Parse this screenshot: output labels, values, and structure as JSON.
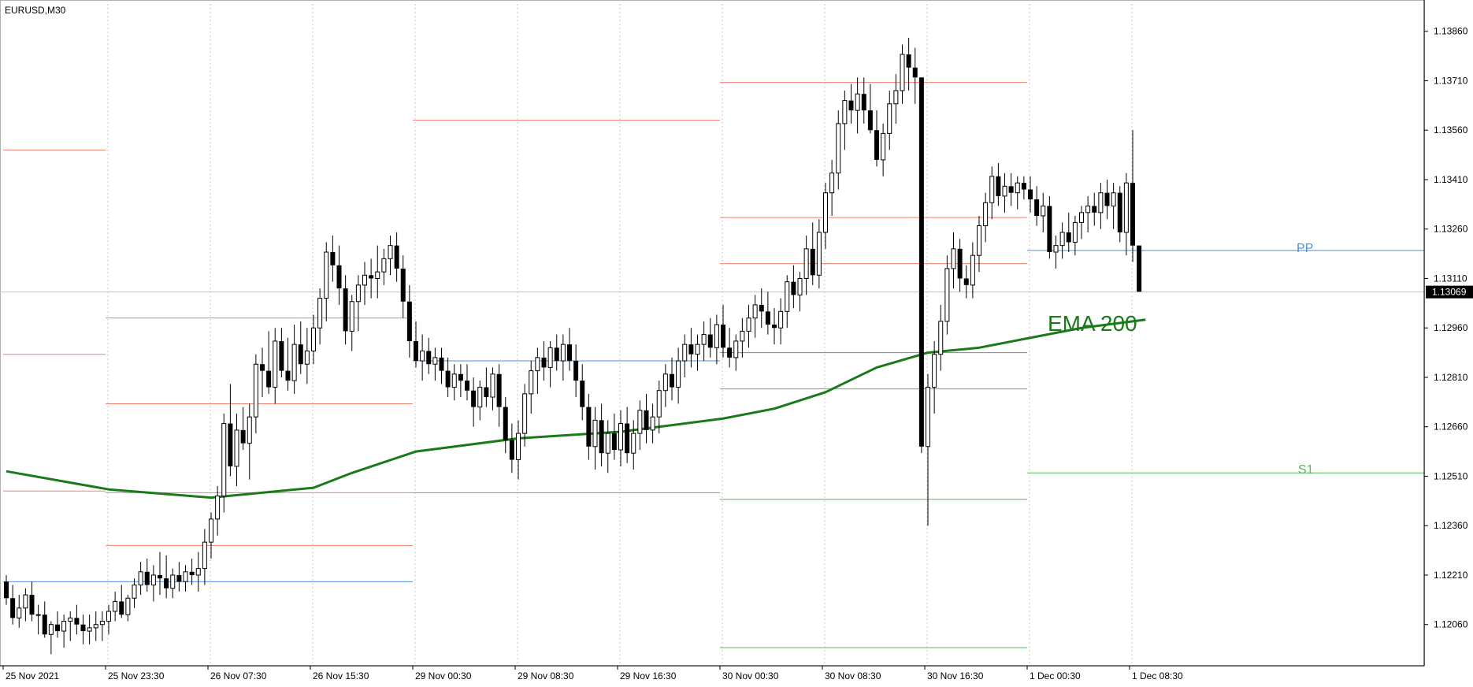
{
  "chart_data": {
    "type": "candlestick",
    "title": "EURUSD,M30",
    "symbol": "EURUSD",
    "timeframe": "M30",
    "current_price": "1.13069",
    "y_ticks": [
      "1.13860",
      "1.13710",
      "1.13560",
      "1.13410",
      "1.13260",
      "1.13110",
      "1.12960",
      "1.12810",
      "1.12660",
      "1.12510",
      "1.12360",
      "1.12210",
      "1.12060"
    ],
    "ylim": [
      1.11935,
      1.13955
    ],
    "x_ticks": [
      "25 Nov 2021",
      "25 Nov 23:30",
      "26 Nov 07:30",
      "26 Nov 15:30",
      "29 Nov 00:30",
      "29 Nov 08:30",
      "29 Nov 16:30",
      "30 Nov 00:30",
      "30 Nov 08:30",
      "30 Nov 16:30",
      "1 Dec 00:30",
      "1 Dec 08:30"
    ],
    "x_tick_bars": [
      0,
      16,
      32,
      48,
      64,
      80,
      96,
      112,
      128,
      144,
      160,
      176
    ],
    "grid": "vertical dotted separators",
    "annotations": {
      "ema": "EMA 200",
      "pp": "PP",
      "s1": "S1"
    },
    "colors": {
      "ema": "#1a7a1a",
      "resistance": "#f08070",
      "support": "#55bb55",
      "pivot": "#4f8fd6",
      "candle": "#000000",
      "price_line": "#c0c0c0"
    },
    "candles_ohlc": [
      [
        1.1219,
        1.1221,
        1.1212,
        1.1214
      ],
      [
        1.1214,
        1.1218,
        1.1206,
        1.1208
      ],
      [
        1.1208,
        1.1215,
        1.1205,
        1.1211
      ],
      [
        1.1211,
        1.1217,
        1.1207,
        1.1215
      ],
      [
        1.1215,
        1.1219,
        1.1207,
        1.1209
      ],
      [
        1.1209,
        1.1212,
        1.1203,
        1.1209
      ],
      [
        1.1209,
        1.1213,
        1.1202,
        1.1203
      ],
      [
        1.1203,
        1.1207,
        1.1197,
        1.1206
      ],
      [
        1.1206,
        1.121,
        1.1202,
        1.1204
      ],
      [
        1.1204,
        1.1209,
        1.1199,
        1.1207
      ],
      [
        1.1207,
        1.121,
        1.1201,
        1.1208
      ],
      [
        1.1208,
        1.1212,
        1.1203,
        1.1206
      ],
      [
        1.1206,
        1.1209,
        1.12,
        1.1204
      ],
      [
        1.1204,
        1.1209,
        1.12,
        1.1205
      ],
      [
        1.1205,
        1.121,
        1.1201,
        1.1206
      ],
      [
        1.1206,
        1.121,
        1.1201,
        1.1207
      ],
      [
        1.1207,
        1.1212,
        1.1203,
        1.121
      ],
      [
        1.121,
        1.1216,
        1.1207,
        1.1213
      ],
      [
        1.1213,
        1.1218,
        1.1208,
        1.1209
      ],
      [
        1.1209,
        1.1215,
        1.1207,
        1.1214
      ],
      [
        1.1214,
        1.122,
        1.1211,
        1.1218
      ],
      [
        1.1218,
        1.1225,
        1.1215,
        1.1222
      ],
      [
        1.1222,
        1.1226,
        1.1216,
        1.1218
      ],
      [
        1.1218,
        1.1224,
        1.1213,
        1.1221
      ],
      [
        1.1221,
        1.1228,
        1.1215,
        1.122
      ],
      [
        1.122,
        1.1227,
        1.1214,
        1.1217
      ],
      [
        1.1217,
        1.1223,
        1.1214,
        1.1221
      ],
      [
        1.1221,
        1.1225,
        1.1216,
        1.1219
      ],
      [
        1.1219,
        1.1224,
        1.1216,
        1.1222
      ],
      [
        1.1222,
        1.1226,
        1.1218,
        1.1221
      ],
      [
        1.1221,
        1.1228,
        1.1216,
        1.1223
      ],
      [
        1.1223,
        1.1235,
        1.1218,
        1.1231
      ],
      [
        1.1231,
        1.124,
        1.1226,
        1.1238
      ],
      [
        1.1238,
        1.1248,
        1.1233,
        1.1245
      ],
      [
        1.1245,
        1.127,
        1.124,
        1.1267
      ],
      [
        1.1267,
        1.1279,
        1.1251,
        1.1254
      ],
      [
        1.1254,
        1.127,
        1.1248,
        1.1265
      ],
      [
        1.1265,
        1.1272,
        1.1259,
        1.1261
      ],
      [
        1.1261,
        1.1273,
        1.125,
        1.1269
      ],
      [
        1.1269,
        1.1288,
        1.1264,
        1.1285
      ],
      [
        1.1285,
        1.129,
        1.1275,
        1.1283
      ],
      [
        1.1283,
        1.1295,
        1.1276,
        1.1278
      ],
      [
        1.1278,
        1.1296,
        1.1273,
        1.1292
      ],
      [
        1.1292,
        1.1296,
        1.1281,
        1.1283
      ],
      [
        1.1283,
        1.1293,
        1.1277,
        1.128
      ],
      [
        1.128,
        1.1297,
        1.1276,
        1.1291
      ],
      [
        1.1291,
        1.1298,
        1.1282,
        1.1285
      ],
      [
        1.1285,
        1.1296,
        1.1279,
        1.1289
      ],
      [
        1.1289,
        1.13,
        1.1285,
        1.1296
      ],
      [
        1.1296,
        1.1308,
        1.1291,
        1.1305
      ],
      [
        1.1305,
        1.1322,
        1.1298,
        1.1319
      ],
      [
        1.1319,
        1.1324,
        1.131,
        1.1315
      ],
      [
        1.1315,
        1.1321,
        1.1303,
        1.1308
      ],
      [
        1.1308,
        1.1312,
        1.1291,
        1.1295
      ],
      [
        1.1295,
        1.1306,
        1.1289,
        1.1304
      ],
      [
        1.1304,
        1.1312,
        1.1295,
        1.1309
      ],
      [
        1.1309,
        1.1316,
        1.1303,
        1.1312
      ],
      [
        1.1312,
        1.1317,
        1.1305,
        1.1311
      ],
      [
        1.1311,
        1.1321,
        1.1305,
        1.1313
      ],
      [
        1.1313,
        1.132,
        1.1309,
        1.1317
      ],
      [
        1.1317,
        1.1324,
        1.1312,
        1.1321
      ],
      [
        1.1321,
        1.1325,
        1.131,
        1.1314
      ],
      [
        1.1314,
        1.1318,
        1.1299,
        1.1304
      ],
      [
        1.1304,
        1.1309,
        1.1287,
        1.1292
      ],
      [
        1.1292,
        1.1298,
        1.1284,
        1.1286
      ],
      [
        1.1286,
        1.1294,
        1.128,
        1.1289
      ],
      [
        1.1289,
        1.1293,
        1.1282,
        1.1285
      ],
      [
        1.1285,
        1.129,
        1.128,
        1.1287
      ],
      [
        1.1287,
        1.129,
        1.1279,
        1.1283
      ],
      [
        1.1283,
        1.1287,
        1.1275,
        1.1278
      ],
      [
        1.1278,
        1.1285,
        1.1274,
        1.1282
      ],
      [
        1.1282,
        1.1285,
        1.1275,
        1.128
      ],
      [
        1.128,
        1.1285,
        1.1274,
        1.1277
      ],
      [
        1.1277,
        1.1281,
        1.1266,
        1.1272
      ],
      [
        1.1272,
        1.128,
        1.1268,
        1.1278
      ],
      [
        1.1278,
        1.1284,
        1.1272,
        1.1275
      ],
      [
        1.1275,
        1.1284,
        1.1271,
        1.1282
      ],
      [
        1.1282,
        1.1285,
        1.1266,
        1.1272
      ],
      [
        1.1272,
        1.1275,
        1.1258,
        1.1262
      ],
      [
        1.1262,
        1.1267,
        1.1252,
        1.1256
      ],
      [
        1.1256,
        1.1268,
        1.125,
        1.1264
      ],
      [
        1.1264,
        1.1279,
        1.126,
        1.1276
      ],
      [
        1.1276,
        1.1286,
        1.127,
        1.1283
      ],
      [
        1.1283,
        1.129,
        1.1276,
        1.1287
      ],
      [
        1.1287,
        1.1292,
        1.128,
        1.1284
      ],
      [
        1.1284,
        1.1292,
        1.1278,
        1.129
      ],
      [
        1.129,
        1.1294,
        1.1283,
        1.1286
      ],
      [
        1.1286,
        1.1294,
        1.128,
        1.1291
      ],
      [
        1.1291,
        1.1296,
        1.1283,
        1.1286
      ],
      [
        1.1286,
        1.1291,
        1.1275,
        1.128
      ],
      [
        1.128,
        1.1285,
        1.1268,
        1.1272
      ],
      [
        1.1272,
        1.1276,
        1.1256,
        1.126
      ],
      [
        1.126,
        1.1272,
        1.1253,
        1.1268
      ],
      [
        1.1268,
        1.1273,
        1.1254,
        1.1258
      ],
      [
        1.1258,
        1.1268,
        1.1252,
        1.1264
      ],
      [
        1.1264,
        1.127,
        1.1256,
        1.1259
      ],
      [
        1.1259,
        1.1271,
        1.1254,
        1.1267
      ],
      [
        1.1267,
        1.1272,
        1.1255,
        1.1258
      ],
      [
        1.1258,
        1.1268,
        1.1253,
        1.1264
      ],
      [
        1.1264,
        1.1274,
        1.1259,
        1.1271
      ],
      [
        1.1271,
        1.1276,
        1.1261,
        1.1265
      ],
      [
        1.1265,
        1.1273,
        1.1261,
        1.1269
      ],
      [
        1.1269,
        1.128,
        1.1264,
        1.1277
      ],
      [
        1.1277,
        1.1285,
        1.1272,
        1.1282
      ],
      [
        1.1282,
        1.1287,
        1.1274,
        1.1278
      ],
      [
        1.1278,
        1.129,
        1.1273,
        1.1286
      ],
      [
        1.1286,
        1.1294,
        1.1281,
        1.1291
      ],
      [
        1.1291,
        1.1296,
        1.1284,
        1.1288
      ],
      [
        1.1288,
        1.1294,
        1.1283,
        1.1291
      ],
      [
        1.1291,
        1.1298,
        1.1286,
        1.1294
      ],
      [
        1.1294,
        1.1299,
        1.1287,
        1.129
      ],
      [
        1.129,
        1.13,
        1.1285,
        1.1297
      ],
      [
        1.1297,
        1.1303,
        1.1287,
        1.129
      ],
      [
        1.129,
        1.1296,
        1.1284,
        1.1287
      ],
      [
        1.1287,
        1.1294,
        1.1283,
        1.1292
      ],
      [
        1.1292,
        1.1299,
        1.1287,
        1.1295
      ],
      [
        1.1295,
        1.1303,
        1.129,
        1.1299
      ],
      [
        1.1299,
        1.1306,
        1.1293,
        1.1303
      ],
      [
        1.1303,
        1.1308,
        1.1296,
        1.1301
      ],
      [
        1.1301,
        1.1307,
        1.1294,
        1.1297
      ],
      [
        1.1297,
        1.1302,
        1.1291,
        1.1296
      ],
      [
        1.1296,
        1.1305,
        1.1291,
        1.1301
      ],
      [
        1.1301,
        1.1312,
        1.1296,
        1.131
      ],
      [
        1.131,
        1.1315,
        1.1302,
        1.1306
      ],
      [
        1.1306,
        1.1313,
        1.1301,
        1.1311
      ],
      [
        1.1311,
        1.1324,
        1.1306,
        1.132
      ],
      [
        1.132,
        1.1328,
        1.1309,
        1.1312
      ],
      [
        1.1312,
        1.1329,
        1.1308,
        1.1325
      ],
      [
        1.1325,
        1.134,
        1.132,
        1.1337
      ],
      [
        1.1337,
        1.1347,
        1.133,
        1.1343
      ],
      [
        1.1343,
        1.1362,
        1.1338,
        1.1358
      ],
      [
        1.1358,
        1.1368,
        1.135,
        1.1365
      ],
      [
        1.1365,
        1.137,
        1.1358,
        1.1362
      ],
      [
        1.1362,
        1.1372,
        1.1355,
        1.1367
      ],
      [
        1.1367,
        1.1372,
        1.1358,
        1.1362
      ],
      [
        1.1362,
        1.137,
        1.1355,
        1.1356
      ],
      [
        1.1356,
        1.1362,
        1.1345,
        1.1347
      ],
      [
        1.1347,
        1.1358,
        1.1342,
        1.1355
      ],
      [
        1.1355,
        1.1368,
        1.135,
        1.1364
      ],
      [
        1.1364,
        1.1373,
        1.1358,
        1.1368
      ],
      [
        1.1368,
        1.1382,
        1.1364,
        1.1379
      ],
      [
        1.1379,
        1.1384,
        1.1368,
        1.1375
      ],
      [
        1.1375,
        1.1381,
        1.1364,
        1.1372
      ],
      [
        1.1372,
        1.1372,
        1.1258,
        1.126
      ],
      [
        1.126,
        1.1282,
        1.1236,
        1.1278
      ],
      [
        1.1278,
        1.1292,
        1.127,
        1.1288
      ],
      [
        1.1288,
        1.1303,
        1.1283,
        1.1298
      ],
      [
        1.1298,
        1.1318,
        1.1294,
        1.1314
      ],
      [
        1.1314,
        1.1325,
        1.1308,
        1.132
      ],
      [
        1.132,
        1.1323,
        1.1307,
        1.1311
      ],
      [
        1.1311,
        1.1315,
        1.1305,
        1.1309
      ],
      [
        1.1309,
        1.1322,
        1.1305,
        1.1318
      ],
      [
        1.1318,
        1.133,
        1.1313,
        1.1327
      ],
      [
        1.1327,
        1.1337,
        1.1322,
        1.1334
      ],
      [
        1.1334,
        1.1345,
        1.1329,
        1.1342
      ],
      [
        1.1342,
        1.1346,
        1.1333,
        1.1336
      ],
      [
        1.1336,
        1.1343,
        1.1331,
        1.1339
      ],
      [
        1.1339,
        1.1343,
        1.1333,
        1.1337
      ],
      [
        1.1337,
        1.1342,
        1.1332,
        1.134
      ],
      [
        1.134,
        1.1342,
        1.1335,
        1.1338
      ],
      [
        1.1338,
        1.1342,
        1.1331,
        1.1335
      ],
      [
        1.1335,
        1.1339,
        1.1327,
        1.133
      ],
      [
        1.133,
        1.1337,
        1.1325,
        1.1333
      ],
      [
        1.1333,
        1.1336,
        1.1317,
        1.1319
      ],
      [
        1.1319,
        1.1324,
        1.1314,
        1.1321
      ],
      [
        1.1321,
        1.1328,
        1.1317,
        1.1325
      ],
      [
        1.1325,
        1.1331,
        1.1319,
        1.1322
      ],
      [
        1.1322,
        1.133,
        1.1318,
        1.1328
      ],
      [
        1.1328,
        1.1333,
        1.1323,
        1.1331
      ],
      [
        1.1331,
        1.1336,
        1.1325,
        1.1333
      ],
      [
        1.1333,
        1.1337,
        1.1327,
        1.1331
      ],
      [
        1.1331,
        1.134,
        1.1326,
        1.1337
      ],
      [
        1.1337,
        1.1341,
        1.1329,
        1.1333
      ],
      [
        1.1333,
        1.134,
        1.1326,
        1.1337
      ],
      [
        1.1337,
        1.1339,
        1.1322,
        1.1325
      ],
      [
        1.1325,
        1.1343,
        1.1318,
        1.134
      ],
      [
        1.134,
        1.1356,
        1.1316,
        1.1321
      ],
      [
        1.1321,
        1.1321,
        1.1307,
        1.1307
      ]
    ],
    "ema200": [
      [
        0,
        1.12525
      ],
      [
        16,
        1.1247
      ],
      [
        32,
        1.12445
      ],
      [
        48,
        1.12475
      ],
      [
        54,
        1.1252
      ],
      [
        64,
        1.12585
      ],
      [
        80,
        1.12625
      ],
      [
        96,
        1.12645
      ],
      [
        112,
        1.12685
      ],
      [
        120,
        1.12715
      ],
      [
        128,
        1.12765
      ],
      [
        136,
        1.1284
      ],
      [
        144,
        1.12885
      ],
      [
        152,
        1.129
      ],
      [
        160,
        1.1293
      ],
      [
        168,
        1.1296
      ],
      [
        178,
        1.12985
      ]
    ],
    "pivot_levels": [
      {
        "kind": "r",
        "from": 0,
        "to": 16,
        "value": 1.135
      },
      {
        "kind": "r",
        "from": 0,
        "to": 16,
        "value": 1.1288
      },
      {
        "kind": "r",
        "from": 0,
        "to": 16,
        "value": 1.12465
      },
      {
        "kind": "p",
        "from": 0,
        "to": 16,
        "value": 1.1219
      },
      {
        "kind": "r",
        "from": 16,
        "to": 64,
        "value": 1.1299
      },
      {
        "kind": "r",
        "from": 16,
        "to": 64,
        "value": 1.1273
      },
      {
        "kind": "r",
        "from": 16,
        "to": 64,
        "value": 1.1246
      },
      {
        "kind": "r",
        "from": 16,
        "to": 64,
        "value": 1.123
      },
      {
        "kind": "p",
        "from": 16,
        "to": 64,
        "value": 1.1219
      },
      {
        "kind": "r",
        "from": 64,
        "to": 112,
        "value": 1.1359
      },
      {
        "kind": "p",
        "from": 64,
        "to": 112,
        "value": 1.1286
      },
      {
        "kind": "s",
        "from": 64,
        "to": 112,
        "value": 1.1246
      },
      {
        "kind": "r",
        "from": 112,
        "to": 160,
        "value": 1.13705
      },
      {
        "kind": "r",
        "from": 112,
        "to": 160,
        "value": 1.13295
      },
      {
        "kind": "r",
        "from": 112,
        "to": 160,
        "value": 1.13155
      },
      {
        "kind": "p",
        "from": 112,
        "to": 160,
        "value": 1.12885
      },
      {
        "kind": "s",
        "from": 112,
        "to": 160,
        "value": 1.12775
      },
      {
        "kind": "s",
        "from": 112,
        "to": 160,
        "value": 1.1244
      },
      {
        "kind": "s",
        "from": 112,
        "to": 160,
        "value": 1.1199
      },
      {
        "kind": "p",
        "from": 160,
        "to": 228,
        "value": 1.13195
      },
      {
        "kind": "s",
        "from": 160,
        "to": 228,
        "value": 1.1252
      }
    ]
  }
}
